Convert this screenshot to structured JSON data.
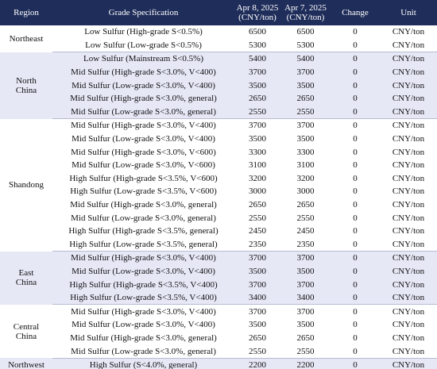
{
  "table": {
    "header": [
      "Region",
      "Grade Specification",
      "Apr 8, 2025\n(CNY/ton)",
      "Apr 7, 2025\n(CNY/ton)",
      "Change",
      "Unit"
    ],
    "groups": [
      {
        "region": "Northeast",
        "rows": [
          [
            "Low Sulfur (High-grade S<0.5%)",
            6500,
            6500,
            0,
            "CNY/ton"
          ],
          [
            "Low Sulfur (Low-grade S<0.5%)",
            5300,
            5300,
            0,
            "CNY/ton"
          ]
        ]
      },
      {
        "region": "North\nChina",
        "rows": [
          [
            "Low Sulfur (Mainstream S<0.5%)",
            5400,
            5400,
            0,
            "CNY/ton"
          ],
          [
            "Mid Sulfur (High-grade S<3.0%, V<400)",
            3700,
            3700,
            0,
            "CNY/ton"
          ],
          [
            "Mid Sulfur (Low-grade S<3.0%, V<400)",
            3500,
            3500,
            0,
            "CNY/ton"
          ],
          [
            "Mid Sulfur (High-grade S<3.0%, general)",
            2650,
            2650,
            0,
            "CNY/ton"
          ],
          [
            "Mid Sulfur (Low-grade S<3.0%, general)",
            2550,
            2550,
            0,
            "CNY/ton"
          ]
        ]
      },
      {
        "region": "Shandong",
        "rows": [
          [
            "Mid Sulfur (High-grade S<3.0%, V<400)",
            3700,
            3700,
            0,
            "CNY/ton"
          ],
          [
            "Mid Sulfur (Low-grade S<3.0%, V<400)",
            3500,
            3500,
            0,
            "CNY/ton"
          ],
          [
            "Mid Sulfur (High-grade S<3.0%, V<600)",
            3300,
            3300,
            0,
            "CNY/ton"
          ],
          [
            "Mid Sulfur (Low-grade S<3.0%, V<600)",
            3100,
            3100,
            0,
            "CNY/ton"
          ],
          [
            "High Sulfur (High-grade S<3.5%, V<600)",
            3200,
            3200,
            0,
            "CNY/ton"
          ],
          [
            "High Sulfur (Low-grade S<3.5%, V<600)",
            3000,
            3000,
            0,
            "CNY/ton"
          ],
          [
            "Mid Sulfur (High-grade S<3.0%, general)",
            2650,
            2650,
            0,
            "CNY/ton"
          ],
          [
            "Mid Sulfur (Low-grade S<3.0%, general)",
            2550,
            2550,
            0,
            "CNY/ton"
          ],
          [
            "High Sulfur (High-grade S<3.5%, general)",
            2450,
            2450,
            0,
            "CNY/ton"
          ],
          [
            "High Sulfur (Low-grade S<3.5%, general)",
            2350,
            2350,
            0,
            "CNY/ton"
          ]
        ]
      },
      {
        "region": "East\nChina",
        "rows": [
          [
            "Mid Sulfur (High-grade S<3.0%, V<400)",
            3700,
            3700,
            0,
            "CNY/ton"
          ],
          [
            "Mid Sulfur (Low-grade S<3.0%, V<400)",
            3500,
            3500,
            0,
            "CNY/ton"
          ],
          [
            "High Sulfur (High-grade S<3.5%, V<400)",
            3700,
            3700,
            0,
            "CNY/ton"
          ],
          [
            "High Sulfur (Low-grade S<3.5%, V<400)",
            3400,
            3400,
            0,
            "CNY/ton"
          ]
        ]
      },
      {
        "region": "Central\nChina",
        "rows": [
          [
            "Mid Sulfur (High-grade S<3.0%, V<400)",
            3700,
            3700,
            0,
            "CNY/ton"
          ],
          [
            "Mid Sulfur (Low-grade S<3.0%, V<400)",
            3500,
            3500,
            0,
            "CNY/ton"
          ],
          [
            "Mid Sulfur (High-grade S<3.0%, general)",
            2650,
            2650,
            0,
            "CNY/ton"
          ],
          [
            "Mid Sulfur (Low-grade S<3.0%, general)",
            2550,
            2550,
            0,
            "CNY/ton"
          ]
        ]
      },
      {
        "region": "Northwest",
        "rows": [
          [
            "High Sulfur (S<4.0%, general)",
            2200,
            2200,
            0,
            "CNY/ton"
          ]
        ]
      }
    ]
  }
}
